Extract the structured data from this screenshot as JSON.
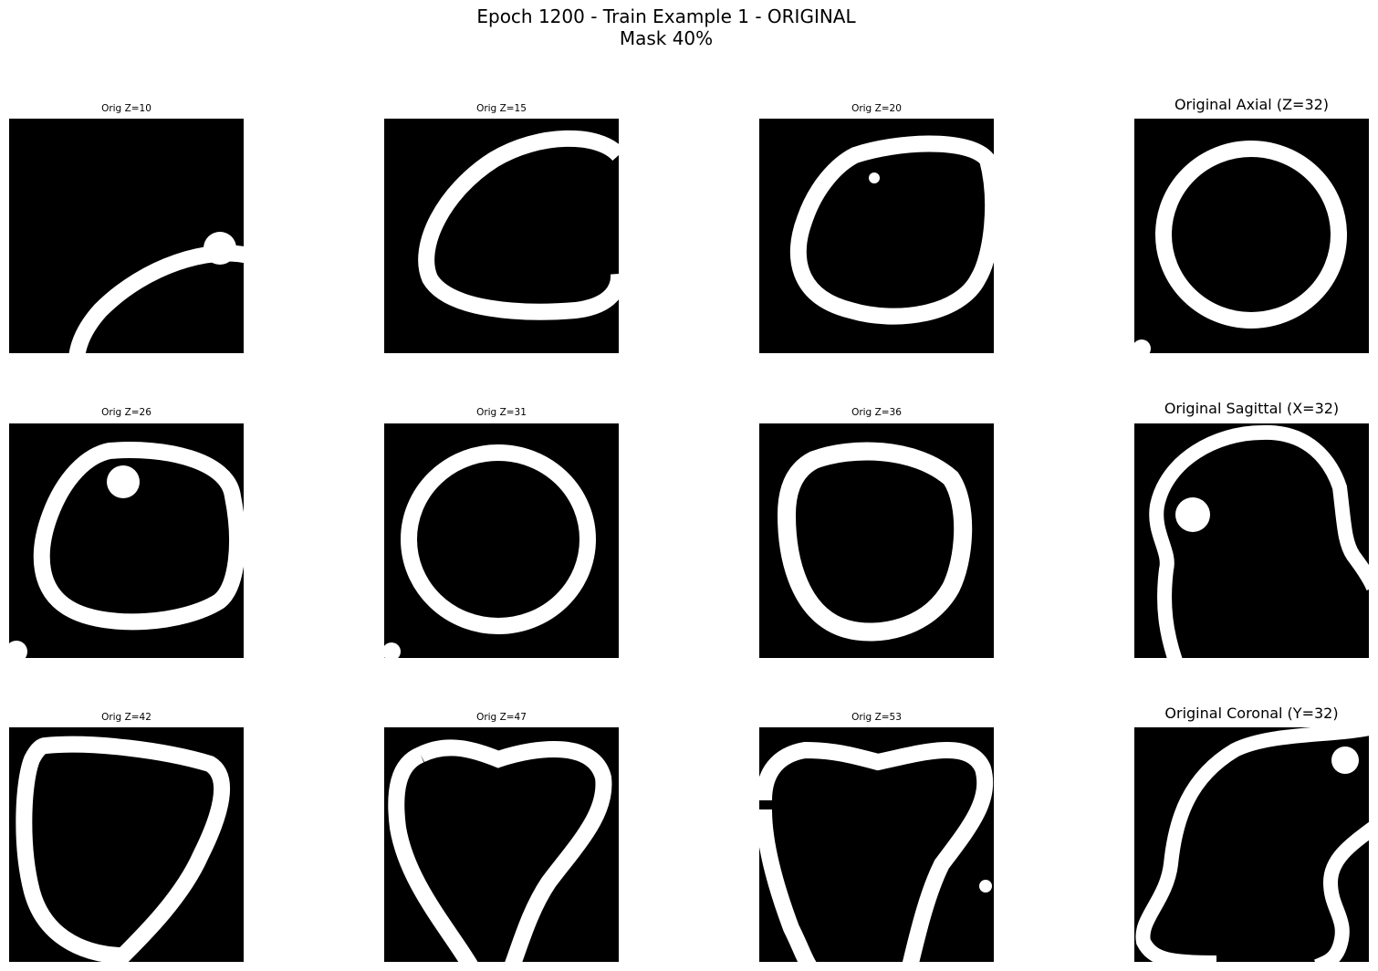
{
  "figure": {
    "title_line_1": "Epoch 1200 - Train Example 1 - ORIGINAL",
    "title_line_2": "Mask 40%"
  },
  "panels": [
    {
      "title": "Orig Z=10"
    },
    {
      "title": "Orig Z=15"
    },
    {
      "title": "Orig Z=20"
    },
    {
      "title": "Original Axial (Z=32)"
    },
    {
      "title": "Orig Z=26"
    },
    {
      "title": "Orig Z=31"
    },
    {
      "title": "Orig Z=36"
    },
    {
      "title": "Original Sagittal (X=32)"
    },
    {
      "title": "Orig Z=42"
    },
    {
      "title": "Orig Z=47"
    },
    {
      "title": "Orig Z=53"
    },
    {
      "title": "Original Coronal (Y=32)"
    }
  ],
  "colors": {
    "background": "#000000",
    "foreground": "#ffffff"
  }
}
